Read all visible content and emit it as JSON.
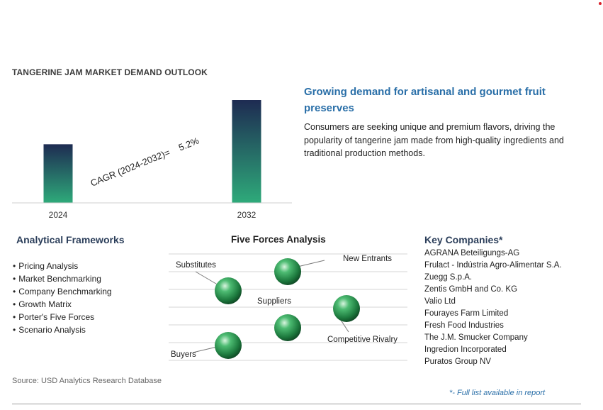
{
  "chart_data": {
    "type": "bar",
    "title": "TANGERINE JAM MARKET DEMAND OUTLOOK",
    "categories": [
      "2024",
      "2032"
    ],
    "values": [
      57,
      100
    ],
    "ylim": [
      0,
      100
    ],
    "annotation": "CAGR (2024-2032)=    5.2%",
    "grid": false,
    "bar_gradient": [
      "#1e2b52",
      "#2eaa7a"
    ]
  },
  "highlight": {
    "headline": "Growing demand for artisanal and gourmet fruit preserves",
    "description": "Consumers are seeking unique and premium flavors, driving the popularity of tangerine jam made from high-quality ingredients and traditional production methods."
  },
  "analytical_frameworks": {
    "title": "Analytical Frameworks",
    "items": [
      "Pricing Analysis",
      "Market Benchmarking",
      "Company Benchmarking",
      "Growth Matrix",
      "Porter's Five Forces",
      "Scenario Analysis"
    ]
  },
  "five_forces": {
    "title": "Five Forces Analysis",
    "labels": {
      "substitutes": "Substitutes",
      "new_entrants": "New Entrants",
      "suppliers": "Suppliers",
      "competitive_rivalry": "Competitive Rivalry",
      "buyers": "Buyers"
    },
    "sphere_color": "#2e9a52"
  },
  "key_companies": {
    "title": "Key Companies*",
    "items": [
      "AGRANA Beteiligungs-AG",
      "Frulact - Indústria Agro-Alimentar S.A.",
      "Zuegg S.p.A.",
      "Zentis GmbH and Co. KG",
      "Valio Ltd",
      "Fourayes Farm Limited",
      "Fresh Food Industries",
      "The J.M. Smucker Company",
      "Ingredion Incorporated",
      "Puratos Group NV"
    ],
    "note": "*- Full list available in report"
  },
  "source": "Source: USD Analytics Research Database"
}
